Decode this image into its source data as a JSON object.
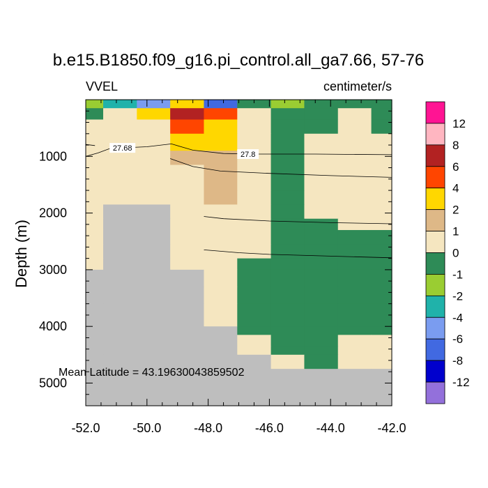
{
  "chart_data": {
    "type": "heatmap",
    "title": "b.e15.B1850.f09_g16.pi_control.all_ga7.66, 57-76",
    "left_label": "VVEL",
    "right_label": "centimeter/s",
    "xlabel": "",
    "ylabel": "Depth (m)",
    "xlim": [
      -52.0,
      -42.0
    ],
    "ylim": [
      0,
      5400
    ],
    "y_reversed": true,
    "x_ticks": [
      "-52.0",
      "-50.0",
      "-48.0",
      "-46.0",
      "-44.0",
      "-42.0"
    ],
    "y_ticks": [
      "1000",
      "2000",
      "3000",
      "4000",
      "5000"
    ],
    "annotation": "Mean Latitude = 43.19630043859502",
    "x_edges": [
      -52.0,
      -51.43,
      -50.33,
      -49.24,
      -48.14,
      -47.05,
      -45.95,
      -44.86,
      -43.76,
      -42.67,
      -42.0
    ],
    "z_edges": [
      0,
      150,
      350,
      600,
      900,
      1150,
      1300,
      1600,
      1850,
      2100,
      2300,
      2550,
      2800,
      3000,
      3300,
      3600,
      3900,
      4000,
      4150,
      4350,
      4500,
      4750,
      5400
    ],
    "land_color": "#bebebe",
    "legend": {
      "labels": [
        "12",
        "8",
        "6",
        "4",
        "2",
        "1",
        "0",
        "-1",
        "-2",
        "-4",
        "-6",
        "-8",
        "-12"
      ],
      "colors": [
        "#ff1493",
        "#ffb6c1",
        "#b22222",
        "#ff4500",
        "#ffd700",
        "#deb887",
        "#f5e6c0",
        "#2e8b57",
        "#9acd32",
        "#20b2aa",
        "#7a9cf0",
        "#4169e1",
        "#0000cd",
        "#9370db"
      ],
      "position": "right"
    },
    "grid": [
      [
        8,
        9,
        10,
        4,
        11,
        7,
        8,
        7,
        7,
        7
      ],
      [
        7,
        6,
        4,
        2,
        3,
        6,
        7,
        7,
        6,
        7
      ],
      [
        6,
        6,
        6,
        3,
        4,
        6,
        7,
        7,
        6,
        7
      ],
      [
        6,
        6,
        6,
        4,
        4,
        6,
        7,
        6,
        6,
        6
      ],
      [
        6,
        6,
        6,
        5,
        5,
        6,
        7,
        6,
        6,
        6
      ],
      [
        6,
        6,
        6,
        6,
        5,
        6,
        7,
        6,
        6,
        6
      ],
      [
        6,
        6,
        6,
        6,
        5,
        6,
        7,
        6,
        6,
        6
      ],
      [
        6,
        6,
        6,
        6,
        5,
        6,
        7,
        6,
        6,
        6
      ],
      [
        6,
        -1,
        -1,
        6,
        6,
        6,
        7,
        6,
        6,
        6
      ],
      [
        6,
        -1,
        -1,
        6,
        6,
        6,
        7,
        7,
        6,
        6
      ],
      [
        6,
        -1,
        -1,
        6,
        6,
        6,
        7,
        7,
        7,
        7
      ],
      [
        6,
        -1,
        -1,
        6,
        6,
        6,
        7,
        7,
        7,
        7
      ],
      [
        6,
        -1,
        -1,
        6,
        6,
        7,
        7,
        7,
        7,
        7
      ],
      [
        -1,
        -1,
        -1,
        -1,
        6,
        7,
        7,
        7,
        7,
        7
      ],
      [
        -1,
        -1,
        -1,
        -1,
        6,
        7,
        7,
        7,
        7,
        7
      ],
      [
        -1,
        -1,
        -1,
        -1,
        6,
        7,
        7,
        7,
        7,
        7
      ],
      [
        -1,
        -1,
        -1,
        -1,
        6,
        7,
        7,
        7,
        7,
        7
      ],
      [
        -1,
        -1,
        -1,
        -1,
        -1,
        7,
        7,
        7,
        7,
        7
      ],
      [
        -1,
        -1,
        -1,
        -1,
        -1,
        6,
        7,
        7,
        6,
        6
      ],
      [
        -1,
        -1,
        -1,
        -1,
        -1,
        6,
        7,
        7,
        6,
        6
      ],
      [
        -1,
        -1,
        -1,
        -1,
        -1,
        -1,
        6,
        7,
        6,
        6
      ],
      [
        -1,
        -1,
        -1,
        -1,
        -1,
        -1,
        -1,
        -1,
        -1,
        -1
      ]
    ],
    "contours": [
      {
        "label": "27.68",
        "points": [
          [
            -52.0,
            1000
          ],
          [
            -51.6,
            940
          ],
          [
            -51.2,
            860
          ],
          [
            -50.0,
            830
          ],
          [
            -49.2,
            780
          ],
          [
            -48.5,
            890
          ],
          [
            -47.5,
            950
          ],
          [
            -46.5,
            960
          ],
          [
            -44.5,
            960
          ],
          [
            -42.0,
            970
          ]
        ]
      },
      {
        "label": "",
        "points": [
          [
            -52.0,
            790
          ],
          [
            -51.7,
            810
          ]
        ]
      },
      {
        "label": "",
        "points": [
          [
            -49.24,
            1040
          ],
          [
            -48.5,
            1180
          ],
          [
            -47.6,
            1260
          ],
          [
            -46.0,
            1300
          ],
          [
            -44.0,
            1340
          ],
          [
            -42.0,
            1370
          ]
        ]
      },
      {
        "label": "27.8",
        "points": [
          [
            -48.14,
            2060
          ],
          [
            -47.5,
            2100
          ],
          [
            -46.0,
            2140
          ],
          [
            -44.0,
            2170
          ],
          [
            -42.0,
            2190
          ]
        ]
      },
      {
        "label": "",
        "points": [
          [
            -48.14,
            2650
          ],
          [
            -47.0,
            2700
          ],
          [
            -46.0,
            2730
          ],
          [
            -44.0,
            2760
          ],
          [
            -42.0,
            2790
          ]
        ]
      }
    ],
    "contour_label_positions": [
      [
        -50.8,
        850
      ],
      [
        -46.7,
        960
      ],
      [
        -46.6,
        2120
      ]
    ]
  }
}
